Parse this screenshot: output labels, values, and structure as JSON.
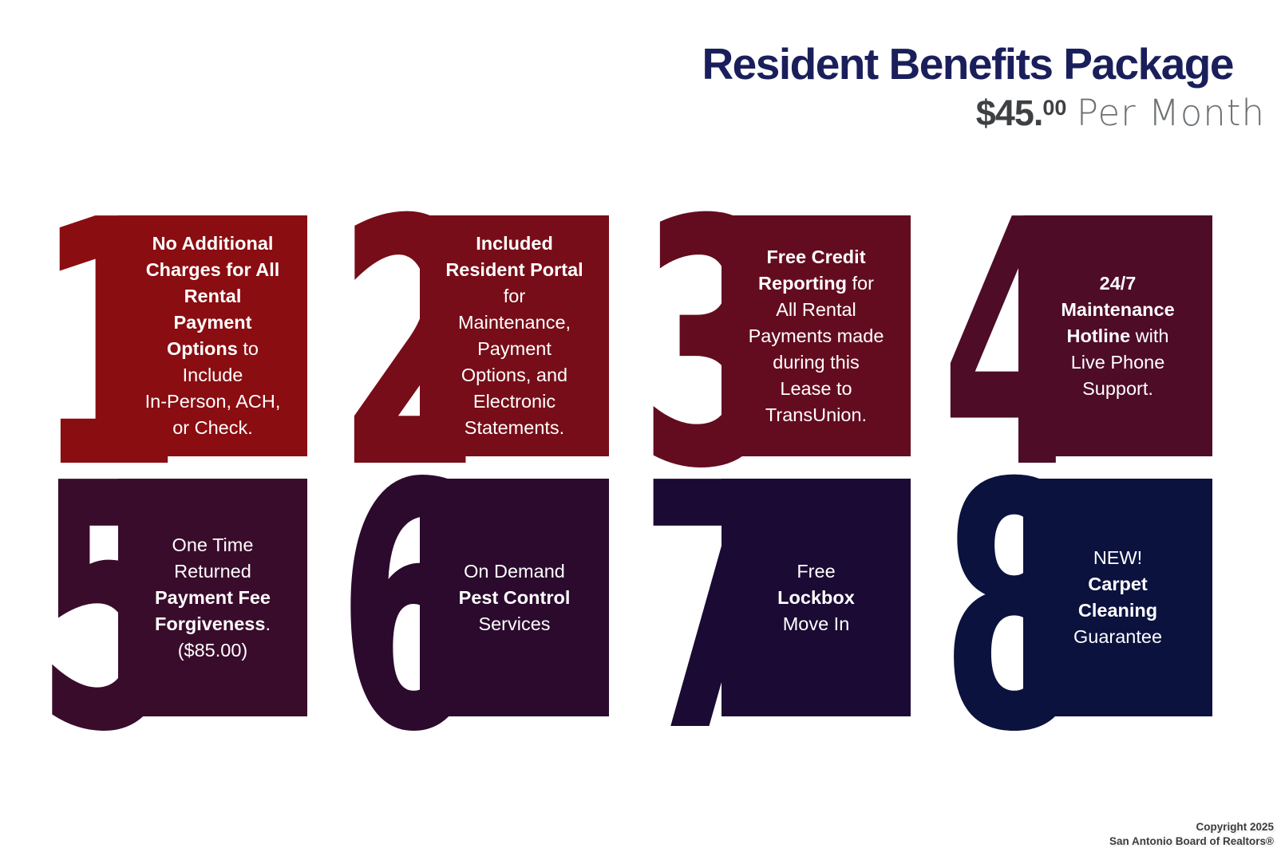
{
  "header": {
    "title": "Resident Benefits Package",
    "price_amount": "$45.",
    "price_cents": "00",
    "price_suffix": "Per Month"
  },
  "colors": {
    "title": "#1A1F5B",
    "price": "#3E4043",
    "price_suffix": "#6E7174",
    "card_text": "#FFFFFF"
  },
  "cards": [
    {
      "number": "1",
      "color": "#8A0D11",
      "lines": [
        [
          {
            "t": "No Additional",
            "b": true
          }
        ],
        [
          {
            "t": "Charges for All",
            "b": true
          }
        ],
        [
          {
            "t": "Rental",
            "b": true
          }
        ],
        [
          {
            "t": "Payment",
            "b": true
          }
        ],
        [
          {
            "t": "Options",
            "b": true
          },
          {
            "t": " to",
            "b": false
          }
        ],
        [
          {
            "t": "Include",
            "b": false
          }
        ],
        [
          {
            "t": "In-Person, ACH,",
            "b": false
          }
        ],
        [
          {
            "t": "or Check.",
            "b": false
          }
        ]
      ]
    },
    {
      "number": "2",
      "color": "#770D18",
      "lines": [
        [
          {
            "t": "Included",
            "b": true
          }
        ],
        [
          {
            "t": "Resident Portal",
            "b": true
          }
        ],
        [
          {
            "t": "for",
            "b": false
          }
        ],
        [
          {
            "t": "Maintenance,",
            "b": false
          }
        ],
        [
          {
            "t": "Payment",
            "b": false
          }
        ],
        [
          {
            "t": "Options, and",
            "b": false
          }
        ],
        [
          {
            "t": "Electronic",
            "b": false
          }
        ],
        [
          {
            "t": "Statements.",
            "b": false
          }
        ]
      ]
    },
    {
      "number": "3",
      "color": "#640C1F",
      "lines": [
        [
          {
            "t": "Free Credit",
            "b": true
          }
        ],
        [
          {
            "t": "Reporting",
            "b": true
          },
          {
            "t": " for",
            "b": false
          }
        ],
        [
          {
            "t": "All Rental",
            "b": false
          }
        ],
        [
          {
            "t": "Payments made",
            "b": false
          }
        ],
        [
          {
            "t": "during this",
            "b": false
          }
        ],
        [
          {
            "t": "Lease to",
            "b": false
          }
        ],
        [
          {
            "t": "TransUnion.",
            "b": false
          }
        ]
      ]
    },
    {
      "number": "4",
      "color": "#4E0C26",
      "lines": [
        [
          {
            "t": "24/7",
            "b": true
          }
        ],
        [
          {
            "t": "Maintenance",
            "b": true
          }
        ],
        [
          {
            "t": "Hotline",
            "b": true
          },
          {
            "t": " with",
            "b": false
          }
        ],
        [
          {
            "t": "Live Phone",
            "b": false
          }
        ],
        [
          {
            "t": "Support.",
            "b": false
          }
        ]
      ]
    },
    {
      "number": "5",
      "color": "#3A0C2B",
      "lines": [
        [
          {
            "t": "One Time",
            "b": false
          }
        ],
        [
          {
            "t": "Returned",
            "b": false
          }
        ],
        [
          {
            "t": "Payment Fee",
            "b": true
          }
        ],
        [
          {
            "t": "Forgiveness",
            "b": true
          },
          {
            "t": ".",
            "b": false
          }
        ],
        [
          {
            "t": "($85.00)",
            "b": false
          }
        ]
      ]
    },
    {
      "number": "6",
      "color": "#2B0A2E",
      "lines": [
        [
          {
            "t": "On Demand",
            "b": false
          }
        ],
        [
          {
            "t": "Pest Control",
            "b": true
          }
        ],
        [
          {
            "t": "Services",
            "b": false
          }
        ]
      ]
    },
    {
      "number": "7",
      "color": "#1B0A33",
      "lines": [
        [
          {
            "t": "Free",
            "b": false
          }
        ],
        [
          {
            "t": "Lockbox",
            "b": true
          }
        ],
        [
          {
            "t": "Move In",
            "b": false
          }
        ]
      ]
    },
    {
      "number": "8",
      "color": "#0C123E",
      "lines": [
        [
          {
            "t": "NEW!",
            "b": false
          }
        ],
        [
          {
            "t": "Carpet",
            "b": true
          }
        ],
        [
          {
            "t": "Cleaning",
            "b": true
          }
        ],
        [
          {
            "t": "Guarantee",
            "b": false
          }
        ]
      ]
    }
  ],
  "footer": {
    "line1": "Copyright 2025",
    "line2": "San Antonio Board of Realtors®"
  }
}
